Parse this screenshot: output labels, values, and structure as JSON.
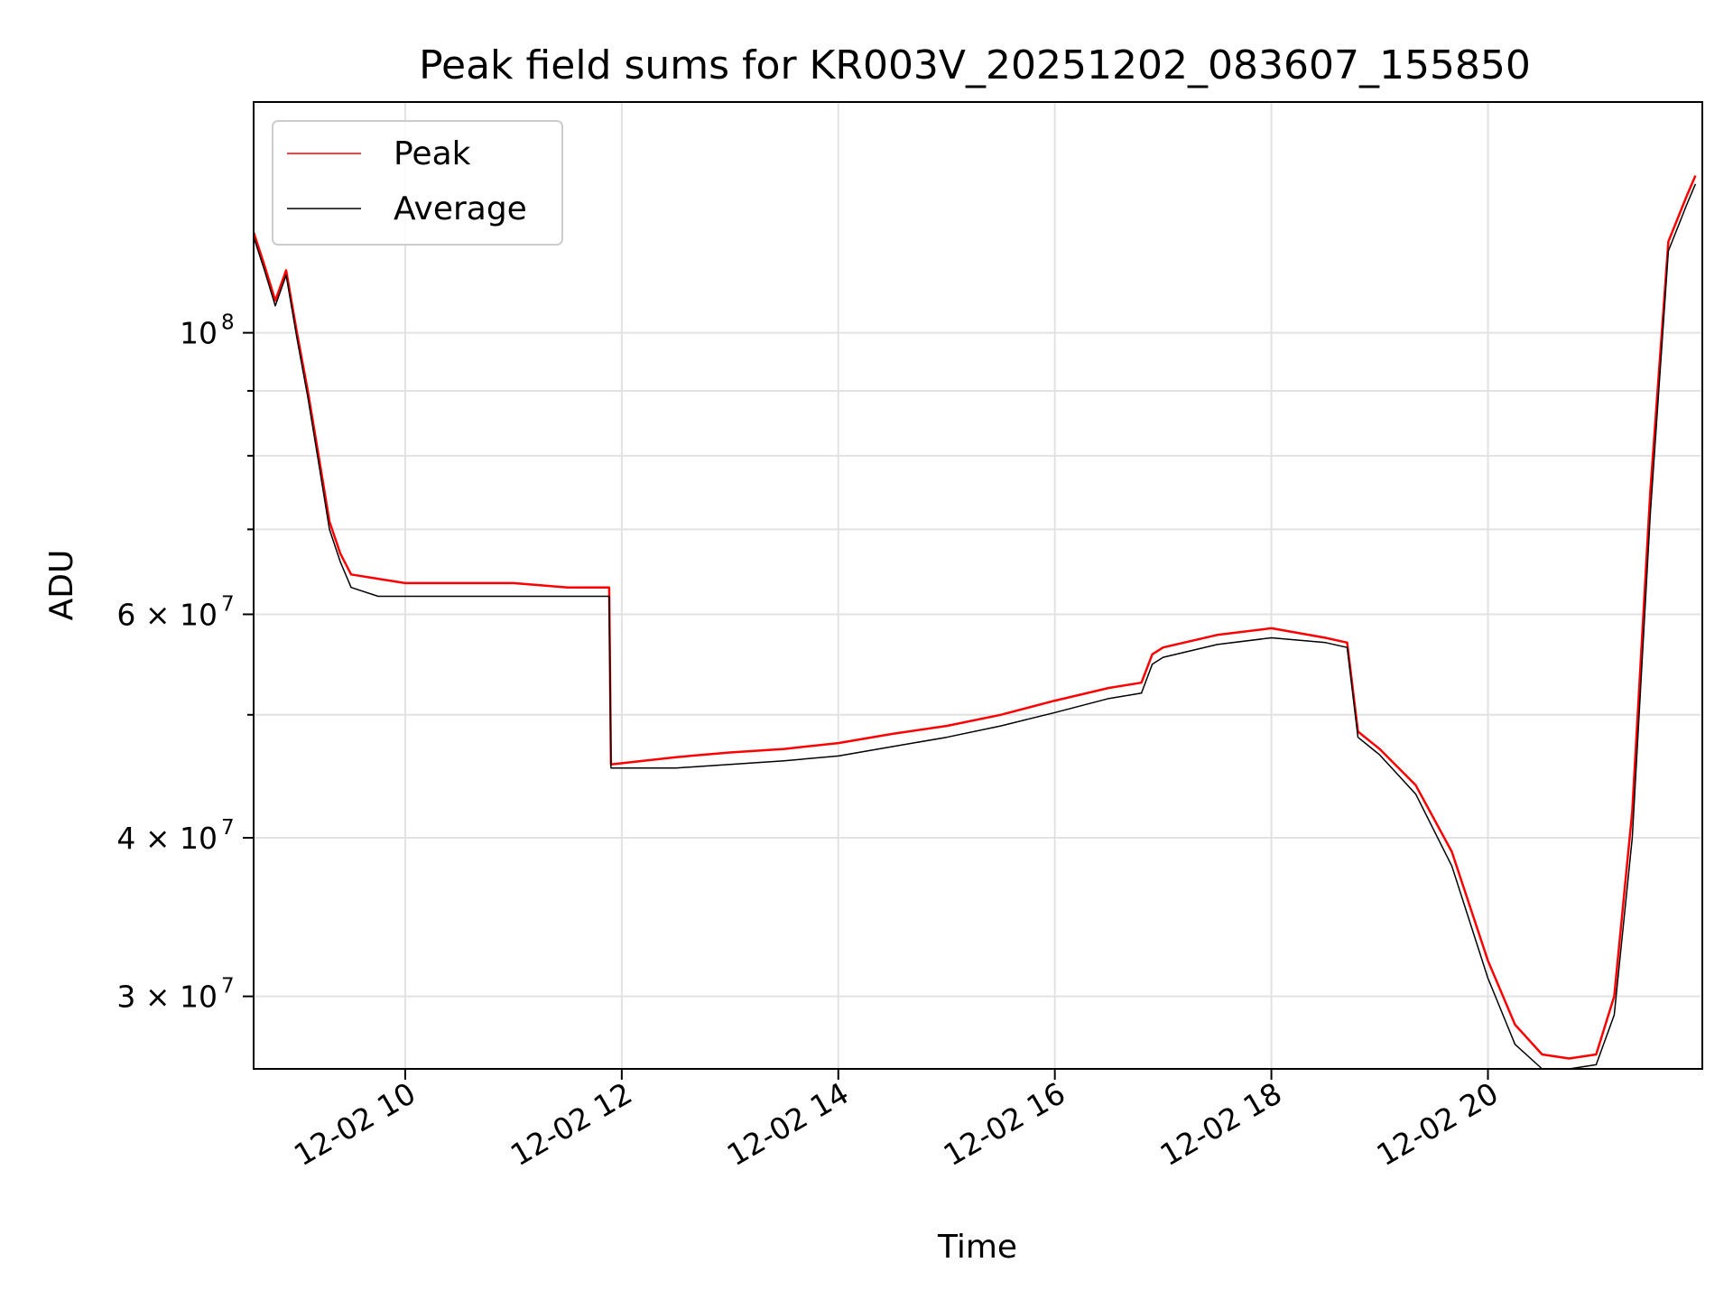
{
  "chart_data": {
    "type": "line",
    "title": "Peak field sums for KR003V_20251202_083607_155850",
    "xlabel": "Time",
    "ylabel": "ADU",
    "y_scale": "log",
    "x_tick_labels": [
      "12-02 10",
      "12-02 12",
      "12-02 14",
      "12-02 16",
      "12-02 18",
      "12-02 20"
    ],
    "y_tick_labels": [
      {
        "value": 100000000,
        "base": "10",
        "exp": "8"
      },
      {
        "value": 60000000,
        "base": "6 × 10",
        "exp": "7"
      },
      {
        "value": 40000000,
        "base": "4 × 10",
        "exp": "7"
      },
      {
        "value": 30000000,
        "base": "3 × 10",
        "exp": "7"
      }
    ],
    "grid": true,
    "legend_position": "top-left",
    "series": [
      {
        "name": "Peak",
        "color": "#ff0000",
        "x": [
          "12-02 08:36",
          "12-02 08:42",
          "12-02 08:48",
          "12-02 08:54",
          "12-02 09:00",
          "12-02 09:06",
          "12-02 09:12",
          "12-02 09:18",
          "12-02 09:24",
          "12-02 09:30",
          "12-02 09:45",
          "12-02 10:00",
          "12-02 10:30",
          "12-02 11:00",
          "12-02 11:30",
          "12-02 11:53",
          "12-02 11:54",
          "12-02 12:30",
          "12-02 13:00",
          "12-02 13:30",
          "12-02 14:00",
          "12-02 14:30",
          "12-02 15:00",
          "12-02 15:30",
          "12-02 16:00",
          "12-02 16:30",
          "12-02 16:48",
          "12-02 16:54",
          "12-02 17:00",
          "12-02 17:30",
          "12-02 18:00",
          "12-02 18:30",
          "12-02 18:42",
          "12-02 18:48",
          "12-02 19:00",
          "12-02 19:20",
          "12-02 19:40",
          "12-02 20:00",
          "12-02 20:15",
          "12-02 20:30",
          "12-02 20:45",
          "12-02 21:00",
          "12-02 21:10",
          "12-02 21:20",
          "12-02 21:30",
          "12-02 21:40",
          "12-02 21:50",
          "12-02 21:55"
        ],
        "values": [
          120000000,
          113000000,
          106000000,
          112000000,
          100000000,
          90000000,
          80000000,
          71000000,
          67000000,
          64500000,
          64000000,
          63500000,
          63500000,
          63500000,
          63000000,
          63000000,
          45700000,
          46300000,
          46700000,
          47000000,
          47500000,
          48300000,
          49000000,
          50000000,
          51300000,
          52500000,
          53000000,
          55800000,
          56500000,
          57800000,
          58500000,
          57500000,
          57000000,
          48500000,
          47000000,
          44000000,
          39000000,
          32000000,
          28500000,
          27000000,
          26800000,
          27000000,
          30000000,
          42000000,
          75000000,
          118000000,
          128000000,
          133000000
        ]
      },
      {
        "name": "Average",
        "color": "#000000",
        "x": [
          "12-02 08:36",
          "12-02 08:42",
          "12-02 08:48",
          "12-02 08:54",
          "12-02 09:00",
          "12-02 09:06",
          "12-02 09:12",
          "12-02 09:18",
          "12-02 09:24",
          "12-02 09:30",
          "12-02 09:45",
          "12-02 10:00",
          "12-02 10:30",
          "12-02 11:00",
          "12-02 11:30",
          "12-02 11:53",
          "12-02 11:54",
          "12-02 12:30",
          "12-02 13:00",
          "12-02 13:30",
          "12-02 14:00",
          "12-02 14:30",
          "12-02 15:00",
          "12-02 15:30",
          "12-02 16:00",
          "12-02 16:30",
          "12-02 16:48",
          "12-02 16:54",
          "12-02 17:00",
          "12-02 17:30",
          "12-02 18:00",
          "12-02 18:30",
          "12-02 18:42",
          "12-02 18:48",
          "12-02 19:00",
          "12-02 19:20",
          "12-02 19:40",
          "12-02 20:00",
          "12-02 20:15",
          "12-02 20:30",
          "12-02 20:45",
          "12-02 21:00",
          "12-02 21:10",
          "12-02 21:20",
          "12-02 21:30",
          "12-02 21:40",
          "12-02 21:50",
          "12-02 21:55"
        ],
        "values": [
          119000000,
          112000000,
          105000000,
          111000000,
          99000000,
          89000000,
          79000000,
          70000000,
          66000000,
          63000000,
          62000000,
          62000000,
          62000000,
          62000000,
          62000000,
          62000000,
          45400000,
          45400000,
          45700000,
          46000000,
          46400000,
          47200000,
          48000000,
          49000000,
          50200000,
          51500000,
          52000000,
          54800000,
          55500000,
          56800000,
          57500000,
          57000000,
          56500000,
          48000000,
          46500000,
          43300000,
          38000000,
          31000000,
          27500000,
          26300000,
          26300000,
          26500000,
          29000000,
          40000000,
          72000000,
          116000000,
          126000000,
          131000000
        ]
      }
    ]
  }
}
